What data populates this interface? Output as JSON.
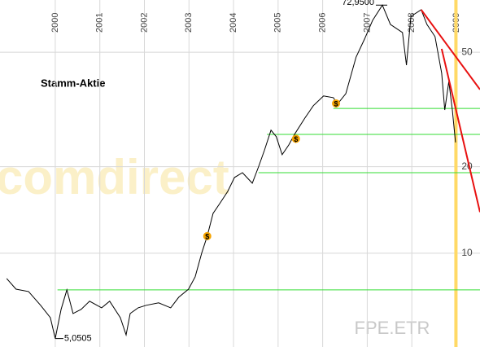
{
  "chart_data": {
    "type": "line",
    "title": "Stamm-Aktie",
    "watermark": ".comdirect",
    "symbol": "FPE.ETR",
    "log_scale": true,
    "grid": true,
    "xlim": [
      1998.76,
      2009.53
    ],
    "xticks": [
      2000,
      2001,
      2002,
      2003,
      2004,
      2005,
      2006,
      2007,
      2008,
      2009
    ],
    "ylim": [
      4.72,
      76
    ],
    "yticks": [
      10,
      20,
      50
    ],
    "series": [
      {
        "color": "#000000",
        "x": [
          1998.91,
          1999.12,
          1999.4,
          1999.67,
          1999.89,
          2000.0,
          2000.13,
          2000.26,
          2000.4,
          2000.58,
          2000.77,
          2001.04,
          2001.22,
          2001.46,
          2001.59,
          2001.68,
          2001.86,
          2002.04,
          2002.32,
          2002.59,
          2002.77,
          2002.99,
          2003.14,
          2003.29,
          2003.41,
          2003.54,
          2003.69,
          2003.87,
          2004.02,
          2004.2,
          2004.42,
          2004.56,
          2004.69,
          2004.84,
          2004.96,
          2005.09,
          2005.24,
          2005.37,
          2005.6,
          2005.79,
          2006.02,
          2006.24,
          2006.33,
          2006.52,
          2006.75,
          2006.94,
          2007.12,
          2007.34,
          2007.52,
          2007.79,
          2007.88,
          2007.98,
          2008.21,
          2008.34,
          2008.52,
          2008.67,
          2008.74,
          2008.83,
          2008.91,
          2008.98
        ],
        "values": [
          8.17,
          7.5,
          7.36,
          6.59,
          5.97,
          5.0505,
          6.38,
          7.46,
          6.17,
          6.38,
          6.81,
          6.46,
          6.81,
          5.97,
          5.2,
          6.17,
          6.46,
          6.59,
          6.72,
          6.46,
          7.03,
          7.5,
          8.28,
          10.07,
          11.47,
          13.76,
          14.89,
          16.41,
          18.34,
          19.07,
          17.53,
          19.96,
          22.75,
          26.79,
          25.43,
          22.02,
          23.81,
          25.93,
          29.52,
          32.58,
          35.24,
          34.76,
          32.99,
          35.92,
          48.15,
          55.59,
          64.57,
          72.95,
          62.5,
          58.6,
          45.1,
          66.7,
          70.3,
          62.5,
          56.7,
          42.3,
          31.5,
          39.6,
          31.5,
          24.3
        ]
      }
    ],
    "annotations": [
      {
        "x": 2007.34,
        "value": 72.95,
        "label": "72,9500"
      },
      {
        "x": 2000.0,
        "value": 5.0505,
        "label": "5,0505"
      }
    ],
    "support_lines": [
      {
        "x": 2000.05,
        "value": 7.46,
        "color": "#33dd33"
      },
      {
        "x": 2004.56,
        "value": 19.07,
        "color": "#33dd33"
      },
      {
        "x": 2004.75,
        "value": 25.9,
        "color": "#33dd33"
      },
      {
        "x": 2006.24,
        "value": 31.9,
        "color": "#33dd33"
      }
    ],
    "trend_lines": [
      {
        "x": [
          2008.21,
          2009.53
        ],
        "values": [
          70.3,
          37.1
        ],
        "color": "#e81010"
      },
      {
        "x": [
          2008.67,
          2009.53
        ],
        "values": [
          51.4,
          13.9
        ],
        "color": "#e81010"
      }
    ],
    "marker_line": {
      "x": 2008.99,
      "color": "#ffd966"
    },
    "dividend_marks": [
      {
        "x": 2003.41,
        "value": 11.47,
        "label": "$"
      },
      {
        "x": 2005.4,
        "value": 25.0,
        "label": "$"
      },
      {
        "x": 2006.3,
        "value": 33.2,
        "label": "$"
      }
    ]
  }
}
